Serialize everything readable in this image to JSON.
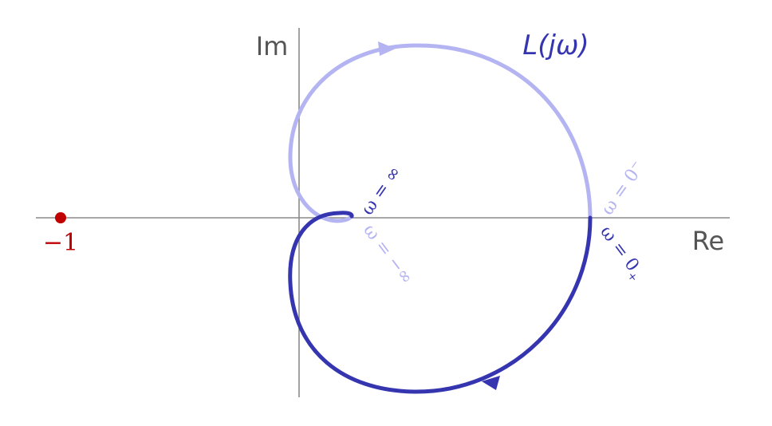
{
  "labels": {
    "im": "Im",
    "re": "Re",
    "function": "L(jω)",
    "critical_point": "−1",
    "omega_pos_inf": "ω = ∞",
    "omega_neg_inf": "ω = −∞",
    "omega_0_minus": "ω = 0",
    "omega_0_minus_sup": "−",
    "omega_0_plus": "ω = 0",
    "omega_0_plus_sup": "+"
  },
  "colors": {
    "positive_branch": "#3535b0",
    "negative_branch": "#b4b4f2",
    "critical_point": "#c00000",
    "axis": "#8a8a8a"
  }
}
